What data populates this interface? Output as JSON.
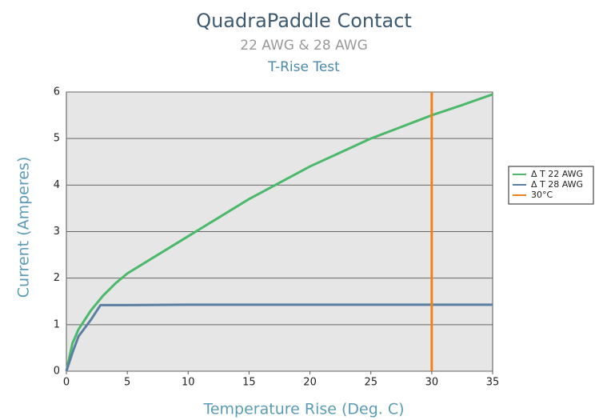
{
  "chart_data": {
    "type": "line",
    "title": "QuadraPaddle Contact",
    "subtitle": "22 AWG & 28 AWG",
    "subtitle2": "T-Rise Test",
    "x_label": "Temperature Rise (Deg. C)",
    "y_label": "Current (Amperes)",
    "xlim": [
      0,
      35
    ],
    "xticks": [
      0,
      5,
      10,
      15,
      20,
      25,
      30,
      35
    ],
    "ylim": [
      0,
      6
    ],
    "yticks": [
      0,
      1,
      2,
      3,
      4,
      5,
      6
    ],
    "grid": true,
    "legend": "right",
    "series": [
      {
        "name": "Δ T 22 AWG",
        "color": "#4cb86a",
        "x": [
          0,
          0.5,
          1,
          2,
          3,
          4,
          5,
          7.5,
          10,
          12.5,
          15,
          17.5,
          20,
          22.5,
          25,
          27.5,
          30,
          32.5,
          35
        ],
        "values": [
          0,
          0.6,
          0.9,
          1.3,
          1.62,
          1.88,
          2.1,
          2.5,
          2.9,
          3.3,
          3.7,
          4.05,
          4.4,
          4.7,
          5.0,
          5.25,
          5.5,
          5.72,
          5.95
        ]
      },
      {
        "name": "Δ T 28 AWG",
        "color": "#5a7fa3",
        "x": [
          0,
          0.5,
          1,
          2,
          2.8,
          5,
          10,
          35
        ],
        "values": [
          0,
          0.4,
          0.75,
          1.1,
          1.42,
          1.42,
          1.43,
          1.43
        ]
      },
      {
        "name": "30°C",
        "color": "#f0821e",
        "x": [
          30,
          30
        ],
        "values": [
          0,
          6
        ]
      }
    ]
  }
}
